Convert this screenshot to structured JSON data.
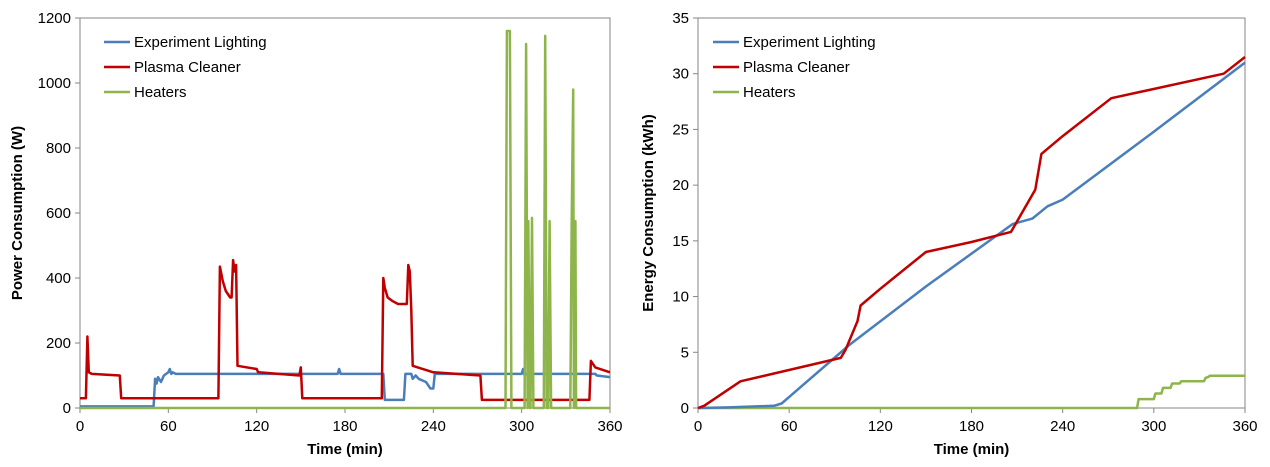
{
  "colors": {
    "lighting": "#4a7ebb",
    "plasma": "#c00000",
    "heaters": "#8db54b"
  },
  "chart_data": [
    {
      "type": "line",
      "xlabel": "Time (min)",
      "ylabel": "Power Consumption (W)",
      "xlim": [
        0,
        360
      ],
      "ylim": [
        0,
        1200
      ],
      "xticks": [
        0,
        60,
        120,
        180,
        240,
        300,
        360
      ],
      "yticks": [
        0,
        200,
        400,
        600,
        800,
        1000,
        1200
      ],
      "grid": false,
      "legend": "top-left",
      "series": [
        {
          "name": "Experiment Lighting",
          "color": "#4a7ebb",
          "x": [
            0,
            50,
            51,
            52,
            53,
            55,
            57,
            60,
            61,
            62,
            63,
            65,
            120,
            150,
            175,
            176,
            177,
            206,
            207,
            208,
            220,
            221,
            225,
            226,
            228,
            230,
            235,
            238,
            240,
            241,
            250,
            300,
            301,
            302,
            303,
            350,
            351,
            360
          ],
          "y": [
            5,
            5,
            90,
            75,
            95,
            80,
            100,
            110,
            120,
            105,
            110,
            105,
            105,
            105,
            105,
            120,
            105,
            105,
            25,
            25,
            25,
            105,
            105,
            90,
            100,
            90,
            80,
            60,
            60,
            105,
            105,
            105,
            120,
            100,
            105,
            105,
            100,
            95
          ]
        },
        {
          "name": "Plasma Cleaner",
          "color": "#c00000",
          "x": [
            0,
            4,
            5,
            6,
            8,
            27,
            28,
            94,
            95,
            97,
            99,
            102,
            103,
            104,
            105,
            106,
            107,
            120,
            121,
            149,
            150,
            151,
            205,
            206,
            207,
            209,
            212,
            216,
            221,
            222,
            223,
            224,
            225,
            226,
            240,
            272,
            273,
            346,
            347,
            350,
            360
          ],
          "y": [
            30,
            30,
            220,
            110,
            105,
            100,
            30,
            30,
            435,
            390,
            360,
            340,
            340,
            455,
            420,
            440,
            130,
            120,
            110,
            100,
            125,
            30,
            30,
            400,
            370,
            340,
            330,
            320,
            320,
            320,
            440,
            420,
            300,
            130,
            110,
            100,
            25,
            25,
            145,
            125,
            110
          ]
        },
        {
          "name": "Heaters",
          "color": "#8db54b",
          "x": [
            0,
            289,
            290,
            292,
            293,
            302,
            303,
            304,
            304.5,
            305.5,
            306,
            307,
            308,
            309,
            310,
            315,
            316,
            317,
            318,
            319,
            320,
            321,
            322,
            333,
            334,
            335,
            335.5,
            336,
            336.5,
            337,
            360
          ],
          "y": [
            0,
            0,
            1160,
            1160,
            0,
            0,
            1120,
            0,
            575,
            0,
            0,
            585,
            0,
            0,
            0,
            0,
            1145,
            0,
            0,
            575,
            0,
            0,
            0,
            0,
            575,
            980,
            0,
            575,
            575,
            0,
            0
          ]
        }
      ]
    },
    {
      "type": "line",
      "xlabel": "Time (min)",
      "ylabel": "Energy Consumption (kWh)",
      "xlim": [
        0,
        360
      ],
      "ylim": [
        0,
        35
      ],
      "xticks": [
        0,
        60,
        120,
        180,
        240,
        300,
        360
      ],
      "yticks": [
        0,
        5,
        10,
        15,
        20,
        25,
        30,
        35
      ],
      "grid": false,
      "legend": "top-left",
      "series": [
        {
          "name": "Experiment Lighting",
          "color": "#4a7ebb",
          "x": [
            0,
            20,
            50,
            55,
            60,
            100,
            150,
            207,
            220,
            230,
            240,
            300,
            360
          ],
          "y": [
            0,
            0.05,
            0.2,
            0.4,
            1.0,
            5.7,
            10.9,
            16.5,
            17.0,
            18.1,
            18.7,
            24.8,
            31.0
          ]
        },
        {
          "name": "Plasma Cleaner",
          "color": "#c00000",
          "x": [
            0,
            4,
            28,
            94,
            97,
            105,
            107,
            120,
            150,
            180,
            206,
            222,
            226,
            240,
            272,
            346,
            360
          ],
          "y": [
            0,
            0.2,
            2.4,
            4.5,
            5.2,
            7.8,
            9.2,
            10.7,
            14.0,
            14.9,
            15.8,
            19.6,
            22.8,
            24.4,
            27.8,
            30.0,
            31.5
          ]
        },
        {
          "name": "Heaters",
          "color": "#8db54b",
          "x": [
            0,
            289,
            290,
            300,
            301,
            305,
            306,
            311,
            312,
            317,
            318,
            322,
            323,
            333,
            334,
            336,
            337,
            360
          ],
          "y": [
            0,
            0,
            0.8,
            0.8,
            1.3,
            1.3,
            1.8,
            1.8,
            2.2,
            2.2,
            2.4,
            2.4,
            2.4,
            2.4,
            2.7,
            2.8,
            2.9,
            2.9
          ]
        }
      ]
    }
  ]
}
